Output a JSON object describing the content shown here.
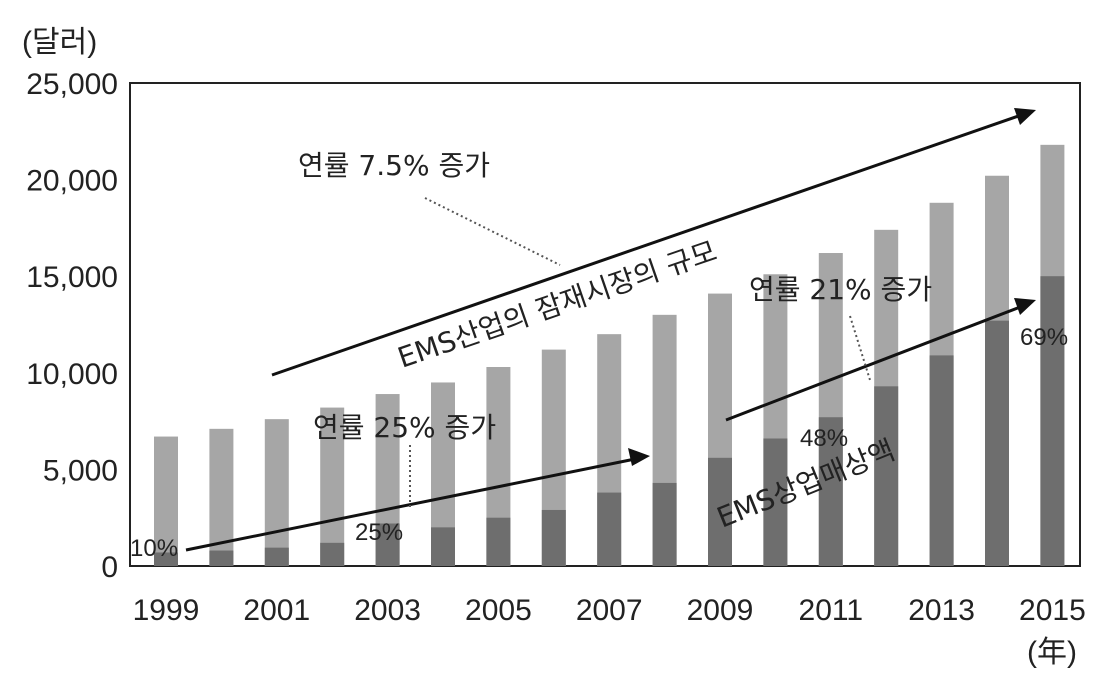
{
  "chart_data": {
    "type": "bar",
    "ylabel": "(달러)",
    "xunit": "(年)",
    "ylim": [
      0,
      25000
    ],
    "yticks": [
      "0",
      "5,000",
      "10,000",
      "15,000",
      "20,000",
      "25,000"
    ],
    "xtick_labels": [
      "1999",
      "2001",
      "2003",
      "2005",
      "2007",
      "2009",
      "2011",
      "2013",
      "2015"
    ],
    "categories": [
      "1999",
      "2000",
      "2001",
      "2002",
      "2003",
      "2004",
      "2005",
      "2006",
      "2007",
      "2008",
      "2009",
      "2010",
      "2011",
      "2012",
      "2013",
      "2014",
      "2015"
    ],
    "series": [
      {
        "name": "EMS산업의 잠재시장의 규모",
        "color": "#a6a6a6",
        "values": [
          6700,
          7100,
          7600,
          8200,
          8900,
          9500,
          10300,
          11200,
          12000,
          13000,
          14100,
          15100,
          16200,
          17400,
          18800,
          20200,
          21800
        ]
      },
      {
        "name": "EMS상업매상액",
        "color": "#6e6e6e",
        "values": [
          700,
          800,
          950,
          1200,
          2200,
          2000,
          2500,
          2900,
          3800,
          4300,
          5600,
          6600,
          7700,
          9300,
          10900,
          12700,
          15000
        ]
      }
    ],
    "annotations": {
      "potential_growth": "연률 7.5% 증가",
      "potential_label": "EMS산업의 잠재시장의 규모",
      "growth_25": "연률 25% 증가",
      "growth_21": "연률 21% 증가",
      "sales_label": "EMS상업매상액",
      "share_1999": "10%",
      "share_2003": "25%",
      "share_2011": "48%",
      "share_2015": "69%"
    }
  }
}
